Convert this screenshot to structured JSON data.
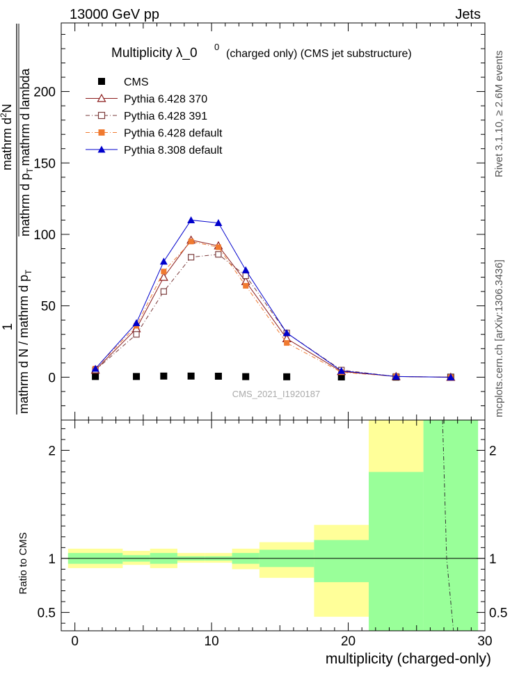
{
  "header": {
    "left": "13000 GeV pp",
    "right": "Jets"
  },
  "side_labels": {
    "rivet": "Rivet 3.1.10, ≥ 2.6M events",
    "mcplots": "mcplots.cern.ch [arXiv:1306.3436]"
  },
  "watermark": "CMS_2021_I1920187",
  "chart_data": [
    {
      "type": "line",
      "title_main": "Multiplicity  λ_0",
      "title_sup": "0",
      "title_rest": "(charged only) (CMS jet substructure)",
      "ylabel_prefix": "1",
      "ylabel_den": "mathrm d N / mathrm d p",
      "ylabel_den_sub": "T",
      "ylabel_num": "mathrm d",
      "ylabel_num_sup": "2",
      "ylabel_num_rest": "N",
      "ylabel_num_den": "mathrm d p",
      "ylabel_num_den_sub": "T",
      "ylabel_num_den_rest": "mathrm d lambda",
      "xlim": [
        -1,
        30
      ],
      "ylim": [
        -30,
        248
      ],
      "y_ticks": [
        0,
        50,
        100,
        150,
        200
      ],
      "y_tick_labels": [
        "0",
        "50",
        "100",
        "150",
        "200"
      ],
      "legend_placement": "top-left",
      "series": [
        {
          "name": "CMS",
          "color": "#000000",
          "marker": "square-filled",
          "line": "none",
          "x": [
            1.5,
            4.5,
            6.5,
            8.5,
            10.5,
            12.5,
            15.5,
            19.5,
            23.5,
            27.5
          ],
          "y": [
            0.5,
            0.5,
            0.8,
            0.8,
            0.7,
            0.4,
            0.3,
            0.2,
            0.1,
            0.0
          ]
        },
        {
          "name": "Pythia 6.428 370",
          "color": "#8b1a1a",
          "marker": "triangle-open",
          "line": "solid",
          "x": [
            1.5,
            4.5,
            6.5,
            8.5,
            10.5,
            12.5,
            15.5,
            19.5,
            23.5,
            27.5
          ],
          "y": [
            5,
            34,
            70,
            96,
            92,
            67,
            27,
            4,
            0.5,
            0
          ]
        },
        {
          "name": "Pythia 6.428 391",
          "color": "#7a3b3b",
          "marker": "square-open",
          "line": "dashdot",
          "x": [
            1.5,
            4.5,
            6.5,
            8.5,
            10.5,
            12.5,
            15.5,
            19.5,
            23.5,
            27.5
          ],
          "y": [
            5,
            30,
            60,
            84,
            86,
            71,
            31,
            5,
            0.5,
            0
          ]
        },
        {
          "name": "Pythia 6.428 default",
          "color": "#f07a30",
          "marker": "square-filled",
          "line": "dashdot",
          "x": [
            1.5,
            4.5,
            6.5,
            8.5,
            10.5,
            12.5,
            15.5,
            19.5,
            23.5,
            27.5
          ],
          "y": [
            6,
            36,
            74,
            95,
            91,
            64,
            24,
            3.5,
            0.5,
            0
          ]
        },
        {
          "name": "Pythia 8.308 default",
          "color": "#0000cc",
          "marker": "triangle-filled",
          "line": "solid",
          "x": [
            1.5,
            4.5,
            6.5,
            8.5,
            10.5,
            12.5,
            15.5,
            19.5,
            23.5,
            27.5
          ],
          "y": [
            6,
            38,
            81,
            110,
            108,
            75,
            31,
            4.5,
            0.5,
            0
          ]
        }
      ]
    },
    {
      "type": "area",
      "ylabel": "Ratio to CMS",
      "xlabel": "multiplicity (charged-only)",
      "xlim": [
        -1,
        30
      ],
      "ylim": [
        0.33,
        2.28
      ],
      "x_ticks": [
        0,
        10,
        20,
        30
      ],
      "x_tick_labels": [
        "0",
        "10",
        "20",
        "30"
      ],
      "y_ticks": [
        0.5,
        1,
        2
      ],
      "y_tick_labels": [
        "0.5",
        "1",
        "2"
      ],
      "reference_line": 1,
      "bands": [
        {
          "x0": -0.5,
          "x1": 3.5,
          "yellow": [
            0.91,
            1.09
          ],
          "green": [
            0.95,
            1.05
          ]
        },
        {
          "x0": 3.5,
          "x1": 5.5,
          "yellow": [
            0.94,
            1.07
          ],
          "green": [
            0.97,
            1.03
          ]
        },
        {
          "x0": 5.5,
          "x1": 7.5,
          "yellow": [
            0.91,
            1.09
          ],
          "green": [
            0.95,
            1.05
          ]
        },
        {
          "x0": 7.5,
          "x1": 9.5,
          "yellow": [
            0.96,
            1.05
          ],
          "green": [
            0.98,
            1.02
          ]
        },
        {
          "x0": 9.5,
          "x1": 11.5,
          "yellow": [
            0.96,
            1.05
          ],
          "green": [
            0.98,
            1.02
          ]
        },
        {
          "x0": 11.5,
          "x1": 13.5,
          "yellow": [
            0.9,
            1.09
          ],
          "green": [
            0.95,
            1.05
          ]
        },
        {
          "x0": 13.5,
          "x1": 17.5,
          "yellow": [
            0.82,
            1.15
          ],
          "green": [
            0.92,
            1.08
          ]
        },
        {
          "x0": 17.5,
          "x1": 21.5,
          "yellow": [
            0.46,
            1.31
          ],
          "green": [
            0.78,
            1.17
          ]
        },
        {
          "x0": 21.5,
          "x1": 25.5,
          "yellow": [
            0.33,
            2.28
          ],
          "green": [
            0.33,
            1.8
          ]
        },
        {
          "x0": 25.5,
          "x1": 29.5,
          "yellow": null,
          "green": [
            0.33,
            2.28
          ]
        }
      ],
      "ratio_line": {
        "x": [
          26.9,
          27.2,
          27.7
        ],
        "y": [
          2.28,
          1.0,
          0.33
        ]
      }
    }
  ]
}
